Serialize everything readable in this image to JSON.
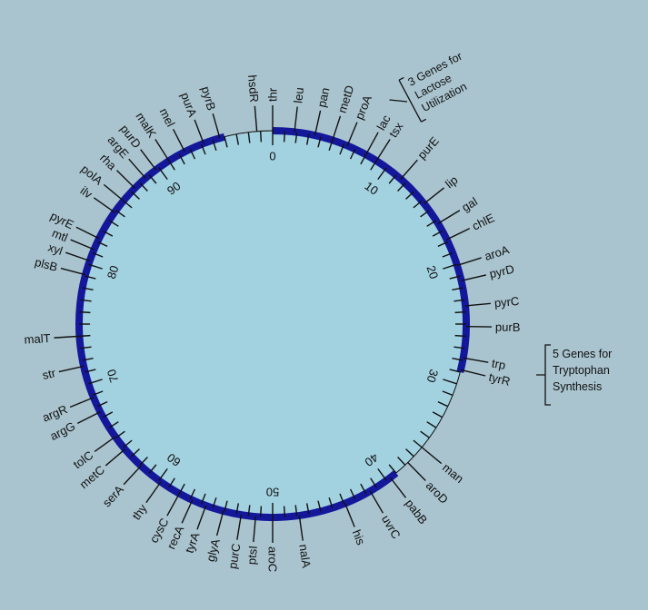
{
  "chart_data": {
    "type": "circular-genetic-map",
    "scale_max": 100,
    "scale_labels": [
      {
        "pos": 0,
        "text": "0"
      },
      {
        "pos": 10,
        "text": "10"
      },
      {
        "pos": 20,
        "text": "20"
      },
      {
        "pos": 30,
        "text": "30"
      },
      {
        "pos": 40,
        "text": "40"
      },
      {
        "pos": 50,
        "text": "50"
      },
      {
        "pos": 60,
        "text": "60"
      },
      {
        "pos": 70,
        "text": "70"
      },
      {
        "pos": 80,
        "text": "80"
      },
      {
        "pos": 90,
        "text": "90"
      }
    ],
    "thick_segments": [
      [
        0,
        29
      ],
      [
        39,
        96
      ]
    ],
    "genes": [
      {
        "name": "thr",
        "pos": 0
      },
      {
        "name": "leu",
        "pos": 1.8
      },
      {
        "name": "pan",
        "pos": 3.5
      },
      {
        "name": "metD",
        "pos": 5
      },
      {
        "name": "proA",
        "pos": 6.3
      },
      {
        "name": "lac",
        "pos": 8
      },
      {
        "name": "tsx",
        "pos": 9
      },
      {
        "name": "purE",
        "pos": 11.5
      },
      {
        "name": "lip",
        "pos": 14.3
      },
      {
        "name": "gal",
        "pos": 16.3
      },
      {
        "name": "chlE",
        "pos": 17.8
      },
      {
        "name": "aroA",
        "pos": 20.1
      },
      {
        "name": "pyrD",
        "pos": 21.4
      },
      {
        "name": "pyrC",
        "pos": 23.5
      },
      {
        "name": "purB",
        "pos": 25.2
      },
      {
        "name": "trp",
        "pos": 27.8
      },
      {
        "name": "tyrR",
        "pos": 28.8
      },
      {
        "name": "man",
        "pos": 36
      },
      {
        "name": "aroD",
        "pos": 37.7
      },
      {
        "name": "pabB",
        "pos": 39.6
      },
      {
        "name": "uvrC",
        "pos": 41.6
      },
      {
        "name": "his",
        "pos": 43.9
      },
      {
        "name": "nalA",
        "pos": 47.8
      },
      {
        "name": "aroC",
        "pos": 50
      },
      {
        "name": "ptsI",
        "pos": 51.4
      },
      {
        "name": "purC",
        "pos": 52.6
      },
      {
        "name": "glyA",
        "pos": 54.1
      },
      {
        "name": "tyrA",
        "pos": 55.6
      },
      {
        "name": "recA",
        "pos": 56.8
      },
      {
        "name": "cysC",
        "pos": 58
      },
      {
        "name": "thy",
        "pos": 59.8
      },
      {
        "name": "serA",
        "pos": 61.9
      },
      {
        "name": "metC",
        "pos": 63.8
      },
      {
        "name": "tolC",
        "pos": 65.1
      },
      {
        "name": "argG",
        "pos": 67.5
      },
      {
        "name": "argR",
        "pos": 68.8
      },
      {
        "name": "str",
        "pos": 71.5
      },
      {
        "name": "malT",
        "pos": 74
      },
      {
        "name": "plsB",
        "pos": 79.1
      },
      {
        "name": "xyl",
        "pos": 80.3
      },
      {
        "name": "mtl",
        "pos": 81.3
      },
      {
        "name": "pyrE",
        "pos": 82.3
      },
      {
        "name": "ilv",
        "pos": 84.8
      },
      {
        "name": "polA",
        "pos": 86
      },
      {
        "name": "rha",
        "pos": 87.4
      },
      {
        "name": "argE",
        "pos": 88.6
      },
      {
        "name": "purD",
        "pos": 89.7
      },
      {
        "name": "malK",
        "pos": 91
      },
      {
        "name": "mel",
        "pos": 92.5
      },
      {
        "name": "purA",
        "pos": 94.2
      },
      {
        "name": "pyrB",
        "pos": 95.6
      },
      {
        "name": "hsdR",
        "pos": 98.7
      }
    ],
    "annotations": [
      {
        "lines": [
          "3 Genes for",
          "Lactose",
          "Utilization"
        ]
      },
      {
        "lines": [
          "5 Genes for",
          "Tryptophan",
          "Synthesis"
        ]
      }
    ]
  },
  "colors": {
    "background": "#a9c4cf",
    "disc": "#a2d1e0",
    "ring": "#14179a",
    "ink": "#111111"
  }
}
